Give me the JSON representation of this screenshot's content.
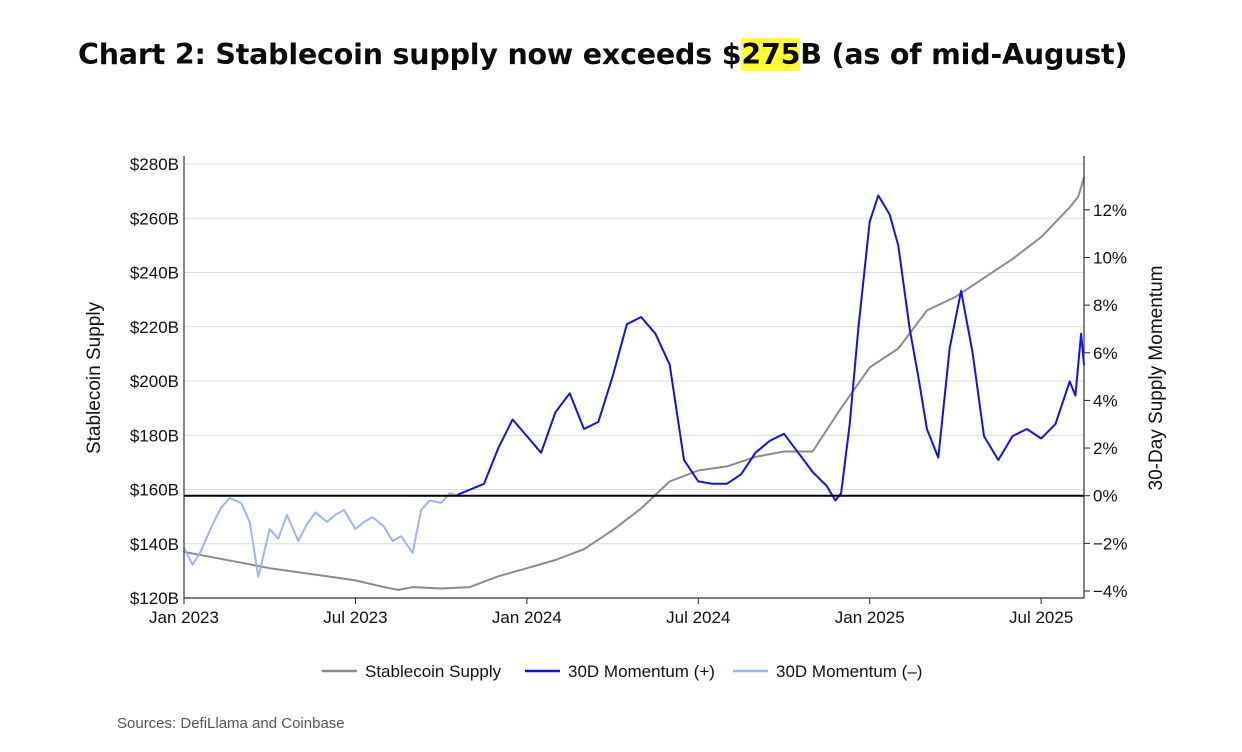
{
  "header": {
    "title_prefix": "Chart 2: Stablecoin supply now exceeds $",
    "title_highlight": "275",
    "title_suffix": "B (as of mid-August)"
  },
  "source": "Sources: DefiLlama and Coinbase",
  "colors": {
    "supply": "#8c8c8c",
    "momentum_pos": "#1212e6",
    "momentum_neg": "#9db4f5",
    "highlight": "#ffff33"
  },
  "chart_data": {
    "type": "line",
    "title": "Chart 2: Stablecoin supply now exceeds $275B (as of mid-August)",
    "xlabel": "",
    "ylabel": "Stablecoin Supply",
    "y2label": "30-Day Supply Momentum",
    "xlim": [
      0,
      31.5
    ],
    "ylim": [
      120,
      280
    ],
    "y2lim": [
      -4,
      13
    ],
    "x_ticks": [
      {
        "x": 0,
        "label": "Jan 2023"
      },
      {
        "x": 6,
        "label": "Jul 2023"
      },
      {
        "x": 12,
        "label": "Jan 2024"
      },
      {
        "x": 18,
        "label": "Jul 2024"
      },
      {
        "x": 24,
        "label": "Jan 2025"
      },
      {
        "x": 30,
        "label": "Jul 2025"
      }
    ],
    "y_ticks": [
      {
        "v": 120,
        "label": "$120B"
      },
      {
        "v": 140,
        "label": "$140B"
      },
      {
        "v": 160,
        "label": "$160B"
      },
      {
        "v": 180,
        "label": "$180B"
      },
      {
        "v": 200,
        "label": "$200B"
      },
      {
        "v": 220,
        "label": "$220B"
      },
      {
        "v": 240,
        "label": "$240B"
      },
      {
        "v": 260,
        "label": "$260B"
      },
      {
        "v": 280,
        "label": "$280B"
      }
    ],
    "y2_ticks": [
      {
        "v": -4,
        "label": "−4%"
      },
      {
        "v": -2,
        "label": "−2%"
      },
      {
        "v": 0,
        "label": "0%"
      },
      {
        "v": 2,
        "label": "2%"
      },
      {
        "v": 4,
        "label": "4%"
      },
      {
        "v": 6,
        "label": "6%"
      },
      {
        "v": 8,
        "label": "8%"
      },
      {
        "v": 10,
        "label": "10%"
      },
      {
        "v": 12,
        "label": "12%"
      }
    ],
    "zero_line": 0,
    "grid": true,
    "legend_position": "bottom",
    "series": [
      {
        "name": "Stablecoin Supply",
        "axis": "left",
        "x": [
          0,
          1,
          2,
          3,
          4,
          5,
          6,
          7,
          7.5,
          8,
          9,
          10,
          11,
          12,
          13,
          14,
          15,
          16,
          17,
          18,
          19,
          20,
          21,
          22,
          23,
          24,
          25,
          26,
          27,
          28,
          29,
          30,
          31,
          31.3,
          31.5
        ],
        "values": [
          137,
          135,
          133,
          131,
          129.5,
          128,
          126.5,
          124,
          123,
          124,
          123.5,
          124,
          128,
          131,
          134,
          138,
          145,
          153,
          163,
          167,
          168.5,
          172,
          174,
          174,
          190,
          205,
          212,
          226,
          231,
          238,
          245,
          253,
          264,
          268,
          275
        ]
      },
      {
        "name": "30D Momentum (+)",
        "axis": "right",
        "x": [
          9.5,
          10.5,
          11,
          11.5,
          12,
          12.5,
          13,
          13.5,
          14,
          14.5,
          15,
          15.5,
          16,
          16.5,
          17,
          17.5,
          18,
          18.5,
          19,
          19.5,
          20,
          20.5,
          21,
          21.5,
          22,
          22.5,
          22.8,
          23,
          23.3,
          23.6,
          24,
          24.3,
          24.7,
          25,
          25.4,
          25.7,
          26,
          26.4,
          26.8,
          27.2,
          27.6,
          28,
          28.5,
          29,
          29.5,
          30,
          30.5,
          31,
          31.2,
          31.4,
          31.5
        ],
        "values": [
          0,
          0.5,
          2,
          3.2,
          2.5,
          1.8,
          3.5,
          4.3,
          2.8,
          3.1,
          5,
          7.2,
          7.5,
          6.8,
          5.5,
          1.5,
          0.6,
          0.5,
          0.5,
          0.9,
          1.8,
          2.3,
          2.6,
          1.8,
          1,
          0.4,
          -0.2,
          0.1,
          3,
          7,
          11.5,
          12.6,
          11.8,
          10.5,
          7,
          5,
          2.8,
          1.6,
          6.2,
          8.6,
          6,
          2.5,
          1.5,
          2.5,
          2.8,
          2.4,
          3,
          4.8,
          4.2,
          6.8,
          5.5
        ]
      },
      {
        "name": "30D Momentum (–)",
        "axis": "right",
        "x": [
          0,
          0.3,
          0.6,
          1,
          1.3,
          1.6,
          2,
          2.3,
          2.6,
          3,
          3.3,
          3.6,
          4,
          4.3,
          4.6,
          5,
          5.3,
          5.6,
          6,
          6.3,
          6.6,
          7,
          7.3,
          7.6,
          8,
          8.3,
          8.6,
          9,
          9.3,
          9.6
        ],
        "values": [
          -2.2,
          -2.9,
          -2.3,
          -1.2,
          -0.5,
          -0.1,
          -0.3,
          -1.1,
          -3.4,
          -1.4,
          -1.8,
          -0.8,
          -1.9,
          -1.2,
          -0.7,
          -1.1,
          -0.8,
          -0.6,
          -1.4,
          -1.1,
          -0.9,
          -1.3,
          -1.9,
          -1.7,
          -2.4,
          -0.6,
          -0.2,
          -0.3,
          0.1,
          0
        ]
      }
    ]
  }
}
